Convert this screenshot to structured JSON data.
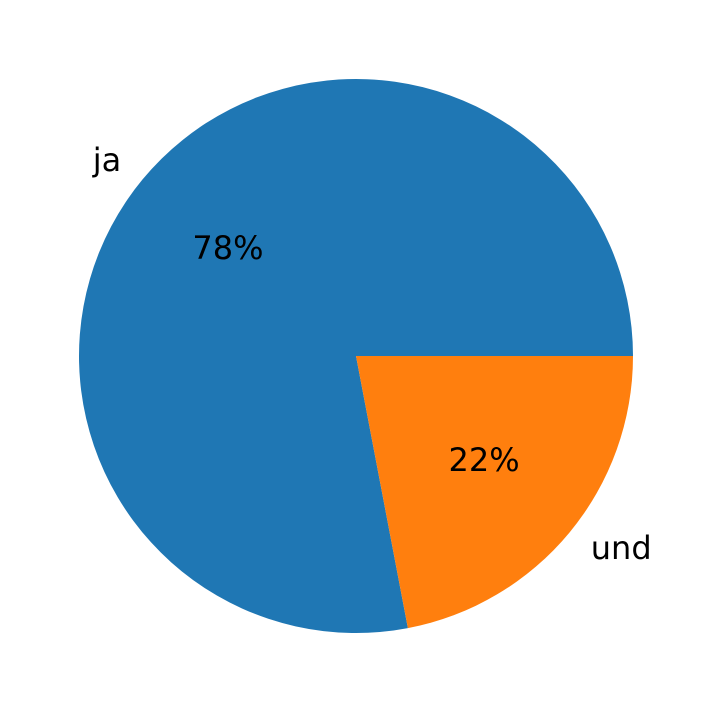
{
  "chart_data": {
    "type": "pie",
    "categories": [
      "ja",
      "und"
    ],
    "values": [
      78,
      22
    ],
    "value_labels": [
      "78%",
      "22%"
    ],
    "colors": [
      "#1f77b4",
      "#ff7f0e"
    ]
  }
}
